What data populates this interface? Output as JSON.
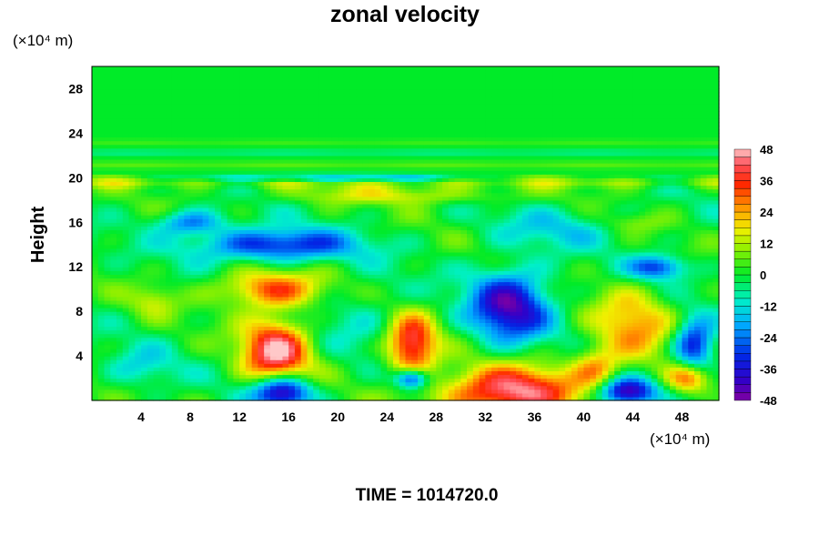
{
  "chart_data": {
    "type": "heatmap",
    "title": "zonal velocity",
    "ylabel": "Height",
    "xlabel": "",
    "y_unit": "(×10⁴ m)",
    "x_unit": "(×10⁴ m)",
    "xlim": [
      0,
      51
    ],
    "ylim": [
      0,
      30
    ],
    "x_ticks": [
      4,
      8,
      12,
      16,
      20,
      24,
      28,
      32,
      36,
      40,
      44,
      48
    ],
    "y_ticks": [
      4,
      8,
      12,
      16,
      20,
      24,
      28
    ],
    "colorbar": {
      "min": -48,
      "max": 48,
      "ticks": [
        48,
        36,
        24,
        12,
        0,
        -12,
        -24,
        -36,
        -48
      ],
      "placement": "right"
    },
    "background_value": 0,
    "features": [
      {
        "x": 14.5,
        "y": 10.0,
        "rx": 4.5,
        "ry": 1.8,
        "value": 32
      },
      {
        "x": 15.0,
        "y": 4.5,
        "rx": 3.0,
        "ry": 3.2,
        "value": 46
      },
      {
        "x": 26.0,
        "y": 5.0,
        "rx": 2.2,
        "ry": 3.0,
        "value": 44
      },
      {
        "x": 34.0,
        "y": 0.8,
        "rx": 6.0,
        "ry": 2.5,
        "value": 46
      },
      {
        "x": 44.0,
        "y": 6.5,
        "rx": 3.5,
        "ry": 4.0,
        "value": 24
      },
      {
        "x": 41.0,
        "y": 3.0,
        "rx": 2.0,
        "ry": 2.0,
        "value": 20
      },
      {
        "x": 48.5,
        "y": 2.0,
        "rx": 2.0,
        "ry": 1.5,
        "value": 32
      },
      {
        "x": 25.0,
        "y": 18.5,
        "rx": 10.0,
        "ry": 0.9,
        "value": 14
      },
      {
        "x": 5.0,
        "y": 9.0,
        "rx": 2.0,
        "ry": 1.5,
        "value": 12
      },
      {
        "x": 34.0,
        "y": 8.5,
        "rx": 3.5,
        "ry": 3.5,
        "value": -42
      },
      {
        "x": 15.0,
        "y": 14.0,
        "rx": 7.0,
        "ry": 1.6,
        "value": -34
      },
      {
        "x": 15.5,
        "y": 0.8,
        "rx": 2.5,
        "ry": 1.6,
        "value": -48
      },
      {
        "x": 43.5,
        "y": 0.8,
        "rx": 2.5,
        "ry": 1.4,
        "value": -48
      },
      {
        "x": 26.0,
        "y": 2.0,
        "rx": 1.5,
        "ry": 1.0,
        "value": -40
      },
      {
        "x": 49.0,
        "y": 5.0,
        "rx": 1.8,
        "ry": 2.5,
        "value": -38
      },
      {
        "x": 46.0,
        "y": 12.0,
        "rx": 2.5,
        "ry": 1.2,
        "value": -30
      },
      {
        "x": 22.0,
        "y": 7.5,
        "rx": 5.0,
        "ry": 3.5,
        "value": -8
      },
      {
        "x": 4.0,
        "y": 3.0,
        "rx": 3.0,
        "ry": 2.0,
        "value": -12
      },
      {
        "x": 38.0,
        "y": 15.5,
        "rx": 6.0,
        "ry": 2.0,
        "value": -12
      },
      {
        "x": 20.0,
        "y": 20.0,
        "rx": 10.0,
        "ry": 0.4,
        "value": -20
      },
      {
        "x": 8.0,
        "y": 16.0,
        "rx": 3.0,
        "ry": 1.2,
        "value": -24
      },
      {
        "x": 44.0,
        "y": 16.0,
        "rx": 3.0,
        "ry": 1.0,
        "value": 8
      }
    ],
    "bands": [
      {
        "y": 21.2,
        "half_width": 0.35,
        "value": 6
      },
      {
        "y": 22.3,
        "half_width": 0.3,
        "value": -6
      },
      {
        "y": 23.2,
        "half_width": 0.3,
        "value": 4
      },
      {
        "y": 19.6,
        "half_width": 0.5,
        "value": 10
      }
    ]
  },
  "footer": {
    "time_text": "TIME = 1014720.0"
  }
}
